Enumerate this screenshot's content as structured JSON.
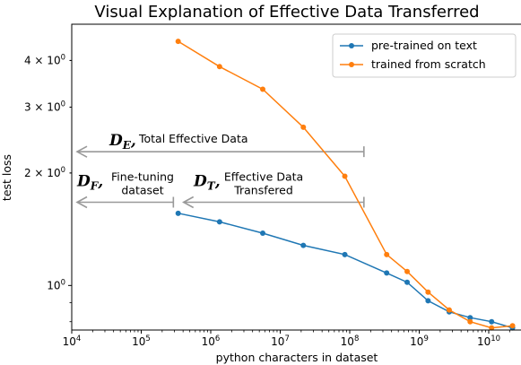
{
  "chart_data": {
    "type": "line",
    "title": "Visual Explanation of Effective Data Transferred",
    "xlabel": "python characters in dataset",
    "ylabel": "test loss",
    "xscale": "log",
    "yscale": "log",
    "xlim": [
      10000,
      30000000000
    ],
    "ylim": [
      0.76,
      5.0
    ],
    "x_ticks": [
      {
        "value": 10000,
        "base": "10",
        "exp": "4"
      },
      {
        "value": 100000,
        "base": "10",
        "exp": "5"
      },
      {
        "value": 1000000,
        "base": "10",
        "exp": "6"
      },
      {
        "value": 10000000,
        "base": "10",
        "exp": "7"
      },
      {
        "value": 100000000,
        "base": "10",
        "exp": "8"
      },
      {
        "value": 1000000000,
        "base": "10",
        "exp": "9"
      },
      {
        "value": 10000000000,
        "base": "10",
        "exp": "10"
      }
    ],
    "y_ticks": [
      {
        "value": 1,
        "mant": "",
        "base": "10",
        "exp": "0"
      },
      {
        "value": 2,
        "mant": "2 × ",
        "base": "10",
        "exp": "0"
      },
      {
        "value": 3,
        "mant": "3 × ",
        "base": "10",
        "exp": "0"
      },
      {
        "value": 4,
        "mant": "4 × ",
        "base": "10",
        "exp": "0"
      }
    ],
    "legend_position": "top-right",
    "series": [
      {
        "name": "pre-trained on text",
        "color": "#1f77b4",
        "x": [
          340000,
          1340000,
          5600000,
          21500000,
          85000000,
          340000000,
          670000000,
          1340000000,
          2700000000,
          5400000000,
          11000000000,
          22000000000
        ],
        "y": [
          1.56,
          1.48,
          1.38,
          1.28,
          1.21,
          1.08,
          1.02,
          0.91,
          0.85,
          0.82,
          0.8,
          0.77
        ]
      },
      {
        "name": "trained from scratch",
        "color": "#ff7f0e",
        "x": [
          340000,
          1340000,
          5600000,
          21500000,
          85000000,
          340000000,
          670000000,
          1340000000,
          2700000000,
          5400000000,
          11000000000,
          22000000000
        ],
        "y": [
          4.5,
          3.85,
          3.35,
          2.65,
          1.96,
          1.21,
          1.09,
          0.96,
          0.86,
          0.8,
          0.77,
          0.78
        ]
      }
    ],
    "annotations": [
      {
        "symbol": "D",
        "sub": "E",
        "text": "Total Effective Data",
        "x_from": 160000000,
        "x_to": 10000,
        "y": 2.28
      },
      {
        "symbol": "D",
        "sub": "F",
        "text_lines": [
          "Fine-tuning",
          "dataset"
        ],
        "x_from": 290000,
        "x_to": 10000,
        "y": 1.67
      },
      {
        "symbol": "D",
        "sub": "T",
        "text_lines": [
          "Effective Data",
          "Transfered"
        ],
        "x_from": 160000000,
        "x_to": 340000,
        "y": 1.67
      }
    ]
  }
}
